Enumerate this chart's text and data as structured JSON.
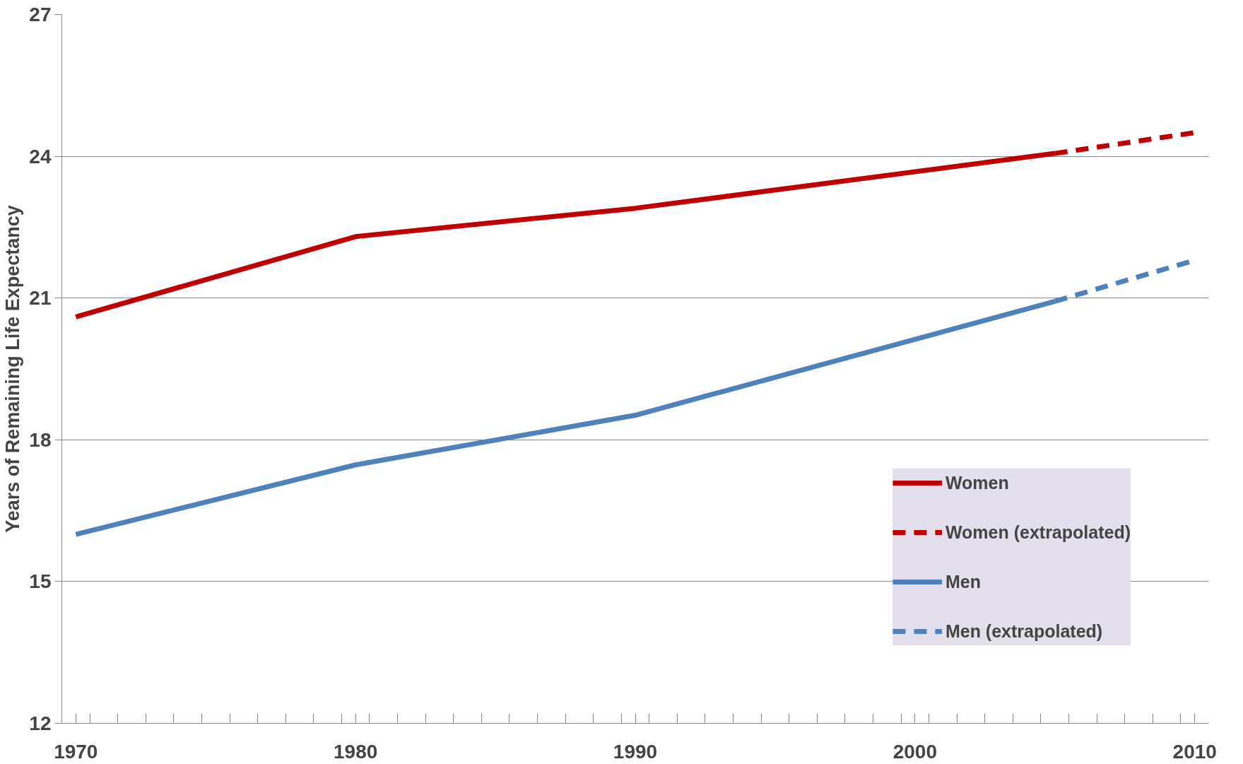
{
  "chart_data": {
    "type": "line",
    "ylabel": "Years of Remaining Life Expectancy",
    "xlim": [
      1969.5,
      2010.5
    ],
    "ylim": [
      12,
      27
    ],
    "xticks": [
      1970,
      1980,
      1990,
      2000,
      2010,
      {
        "value": 1970.5,
        "label": null
      },
      {
        "value": 1971.5,
        "label": null
      },
      {
        "value": 1972.5,
        "label": null
      },
      {
        "value": 1973.5,
        "label": null
      },
      {
        "value": 1974.5,
        "label": null
      },
      {
        "value": 1975.5,
        "label": null
      },
      {
        "value": 1976.5,
        "label": null
      },
      {
        "value": 1977.5,
        "label": null
      },
      {
        "value": 1978.5,
        "label": null
      },
      {
        "value": 1979.5,
        "label": null
      },
      {
        "value": 1980.5,
        "label": null
      },
      {
        "value": 1981.5,
        "label": null
      },
      {
        "value": 1982.5,
        "label": null
      },
      {
        "value": 1983.5,
        "label": null
      },
      {
        "value": 1984.5,
        "label": null
      },
      {
        "value": 1985.5,
        "label": null
      },
      {
        "value": 1986.5,
        "label": null
      },
      {
        "value": 1987.5,
        "label": null
      },
      {
        "value": 1988.5,
        "label": null
      },
      {
        "value": 1989.5,
        "label": null
      },
      {
        "value": 1990.5,
        "label": null
      },
      {
        "value": 1991.5,
        "label": null
      },
      {
        "value": 1992.5,
        "label": null
      },
      {
        "value": 1993.5,
        "label": null
      },
      {
        "value": 1994.5,
        "label": null
      },
      {
        "value": 1995.5,
        "label": null
      },
      {
        "value": 1996.5,
        "label": null
      },
      {
        "value": 1997.5,
        "label": null
      },
      {
        "value": 1998.5,
        "label": null
      },
      {
        "value": 1999.5,
        "label": null
      },
      {
        "value": 2000.5,
        "label": null
      },
      {
        "value": 2001.5,
        "label": null
      },
      {
        "value": 2002.5,
        "label": null
      },
      {
        "value": 2003.5,
        "label": null
      },
      {
        "value": 2004.5,
        "label": null
      },
      {
        "value": 2005.5,
        "label": null
      },
      {
        "value": 2006.5,
        "label": null
      },
      {
        "value": 2007.5,
        "label": null
      },
      {
        "value": 2008.5,
        "label": null
      },
      {
        "value": 2009.5,
        "label": null
      }
    ],
    "yticks": [
      12,
      15,
      18,
      21,
      24,
      27
    ],
    "grid": "y",
    "legend": "bottom right",
    "marker": "none",
    "series": [
      {
        "name": "Women",
        "color": "#c00000",
        "line_style": "solid",
        "x": [
          1970,
          1980,
          1990,
          2005
        ],
        "values": [
          20.6,
          22.3,
          22.9,
          24.06
        ]
      },
      {
        "name": "Women (extrapolated)",
        "color": "#c00000",
        "line_style": "dashed",
        "x": [
          2005,
          2010
        ],
        "values": [
          24.06,
          24.5
        ]
      },
      {
        "name": "Men",
        "color": "#4f81bd",
        "line_style": "solid",
        "x": [
          1970,
          1980,
          1990,
          2005
        ],
        "values": [
          16.0,
          17.47,
          18.52,
          20.93
        ]
      },
      {
        "name": "Men (extrapolated)",
        "color": "#4f81bd",
        "line_style": "dashed",
        "x": [
          2005,
          2010
        ],
        "values": [
          20.93,
          21.8
        ]
      }
    ]
  }
}
